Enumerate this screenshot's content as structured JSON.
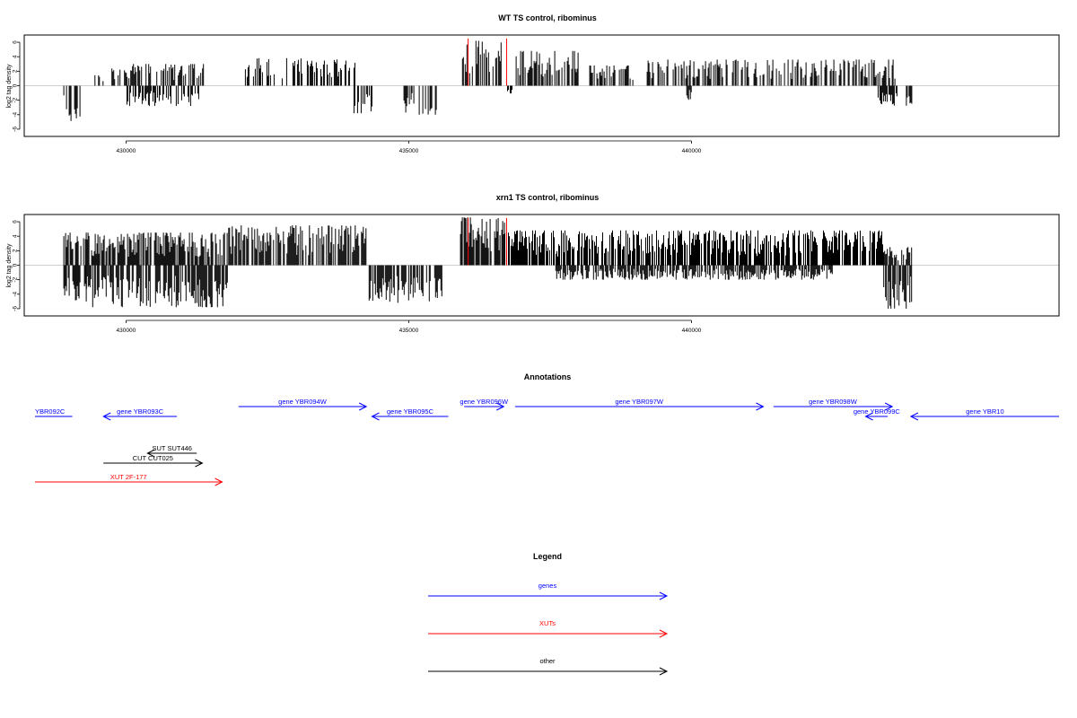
{
  "chart_data": [
    {
      "type": "bar",
      "title": "WT TS control, ribominus",
      "xlabel": "",
      "ylabel": "log2 tag density",
      "ylim": [
        -7,
        7
      ],
      "yticks": [
        6,
        4,
        2,
        0,
        -2,
        -4,
        -6
      ],
      "xlim": [
        428200,
        446500
      ],
      "xticks": [
        430000,
        435000,
        440000
      ],
      "xtick_labels": [
        "430000",
        "435000",
        "440000"
      ],
      "marker_lines": [
        436050,
        436730
      ],
      "marker_color": "#ff0000",
      "signal_segments": [
        {
          "start": 428900,
          "end": 429200,
          "strand": "minus",
          "max": 5.0
        },
        {
          "start": 429450,
          "end": 429650,
          "strand": "plus",
          "max": 1.5
        },
        {
          "start": 429750,
          "end": 430100,
          "strand": "plus",
          "max": 2.5
        },
        {
          "start": 430000,
          "end": 431300,
          "strand": "minus",
          "max": 2.8
        },
        {
          "start": 430100,
          "end": 431400,
          "strand": "plus",
          "max": 3.0
        },
        {
          "start": 432000,
          "end": 434100,
          "strand": "plus",
          "max": 3.8
        },
        {
          "start": 434000,
          "end": 434400,
          "strand": "minus",
          "max": 3.8
        },
        {
          "start": 434900,
          "end": 435500,
          "strand": "minus",
          "max": 4.0
        },
        {
          "start": 435950,
          "end": 436700,
          "strand": "plus",
          "max": 6.2
        },
        {
          "start": 436700,
          "end": 436850,
          "strand": "minus",
          "max": 1.8
        },
        {
          "start": 436900,
          "end": 438000,
          "strand": "plus",
          "max": 4.8
        },
        {
          "start": 438200,
          "end": 439000,
          "strand": "plus",
          "max": 2.8
        },
        {
          "start": 439200,
          "end": 443600,
          "strand": "plus",
          "max": 3.6
        },
        {
          "start": 439900,
          "end": 440000,
          "strand": "minus",
          "max": 2.0
        },
        {
          "start": 443300,
          "end": 443700,
          "strand": "minus",
          "max": 2.8
        },
        {
          "start": 443800,
          "end": 443900,
          "strand": "minus",
          "max": 3.2
        }
      ]
    },
    {
      "type": "bar",
      "title": "xrn1 TS control, ribominus",
      "xlabel": "",
      "ylabel": "log2 tag density",
      "ylim": [
        -7,
        7
      ],
      "yticks": [
        6,
        4,
        2,
        0,
        -2,
        -4,
        -6
      ],
      "xlim": [
        428200,
        446500
      ],
      "xticks": [
        430000,
        435000,
        440000
      ],
      "xtick_labels": [
        "430000",
        "435000",
        "440000"
      ],
      "marker_lines": [
        436050,
        436730
      ],
      "marker_color": "#ff0000",
      "signal_segments": [
        {
          "start": 428900,
          "end": 429300,
          "strand": "minus",
          "max": 5.0
        },
        {
          "start": 428900,
          "end": 431800,
          "strand": "plus",
          "max": 4.5
        },
        {
          "start": 429300,
          "end": 431800,
          "strand": "minus",
          "max": 5.8
        },
        {
          "start": 431800,
          "end": 434300,
          "strand": "plus",
          "max": 5.5
        },
        {
          "start": 434300,
          "end": 435600,
          "strand": "minus",
          "max": 5.2
        },
        {
          "start": 435900,
          "end": 436700,
          "strand": "plus",
          "max": 6.6
        },
        {
          "start": 436700,
          "end": 443400,
          "strand": "plus",
          "max": 4.8
        },
        {
          "start": 437600,
          "end": 442500,
          "strand": "minus",
          "max": 2.0
        },
        {
          "start": 443400,
          "end": 443900,
          "strand": "minus",
          "max": 6.0
        },
        {
          "start": 443400,
          "end": 443900,
          "strand": "plus",
          "max": 2.5
        }
      ]
    }
  ],
  "annotations": {
    "title": "Annotations",
    "features": [
      {
        "label": "YBR092C",
        "start": 428200,
        "end": 429050,
        "strand": "-",
        "category": "gene",
        "row": 1
      },
      {
        "label": "gene YBR093C",
        "start": 429600,
        "end": 430900,
        "strand": "-",
        "category": "gene",
        "row": 1
      },
      {
        "label": "gene YBR094W",
        "start": 431990,
        "end": 434250,
        "strand": "+",
        "category": "gene",
        "row": 0
      },
      {
        "label": "gene YBR095C",
        "start": 434350,
        "end": 435700,
        "strand": "-",
        "category": "gene",
        "row": 1
      },
      {
        "label": "gene YBR096W",
        "start": 435980,
        "end": 436680,
        "strand": "+",
        "category": "gene",
        "row": 0
      },
      {
        "label": "gene YBR097W",
        "start": 436880,
        "end": 441270,
        "strand": "+",
        "category": "gene",
        "row": 0
      },
      {
        "label": "gene YBR098W",
        "start": 441450,
        "end": 443550,
        "strand": "+",
        "category": "gene",
        "row": 0
      },
      {
        "label": "gene YBR099C",
        "start": 443080,
        "end": 443470,
        "strand": "-",
        "category": "gene",
        "row": 1
      },
      {
        "label": "gene YBR10",
        "start": 443880,
        "end": 446500,
        "strand": "-",
        "category": "gene",
        "row": 1
      },
      {
        "label": "SUT SUT446",
        "start": 430380,
        "end": 431250,
        "strand": "-",
        "category": "other",
        "row": 3
      },
      {
        "label": "CUT CUT025",
        "start": 429600,
        "end": 431350,
        "strand": "+",
        "category": "other",
        "row": 4
      },
      {
        "label": "XUT 2F-177",
        "start": 428200,
        "end": 431700,
        "strand": "+",
        "category": "xut",
        "row": 6
      }
    ]
  },
  "legend": {
    "title": "Legend",
    "items": [
      {
        "label": "genes",
        "color": "#0000ff"
      },
      {
        "label": "XUTs",
        "color": "#ff0000"
      },
      {
        "label": "other",
        "color": "#000000"
      }
    ]
  },
  "colors": {
    "gene": "#0000ff",
    "xut": "#ff0000",
    "other": "#000000",
    "baseline": "#bebebe"
  }
}
